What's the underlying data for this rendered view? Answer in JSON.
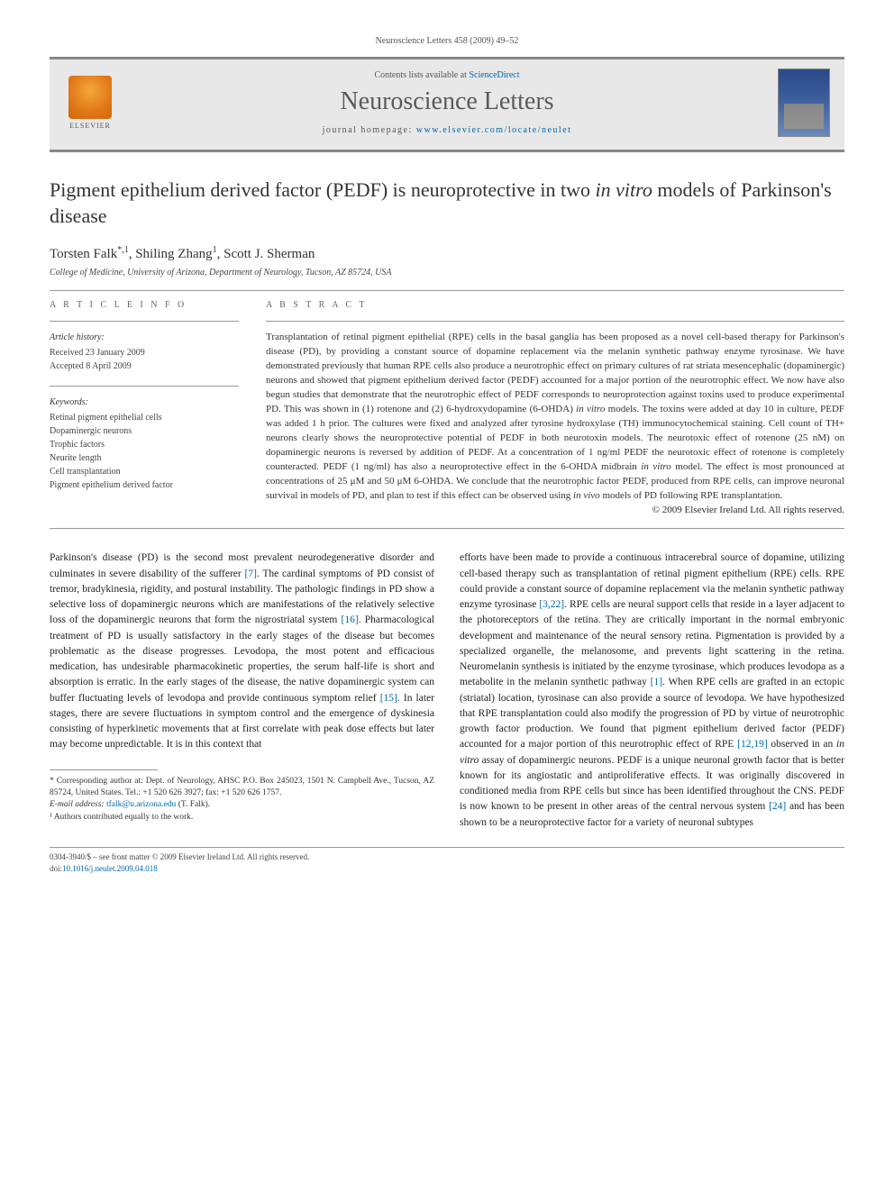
{
  "running_header": "Neuroscience Letters 458 (2009) 49–52",
  "banner": {
    "publisher": "ELSEVIER",
    "contents_prefix": "Contents lists available at ",
    "contents_link": "ScienceDirect",
    "journal_name": "Neuroscience Letters",
    "homepage_prefix": "journal homepage: ",
    "homepage_url": "www.elsevier.com/locate/neulet"
  },
  "title_html": "Pigment epithelium derived factor (PEDF) is neuroprotective in two <em>in vitro</em> models of Parkinson's disease",
  "authors_html": "Torsten Falk<sup>*,1</sup>, Shiling Zhang<sup>1</sup>, Scott J. Sherman",
  "affiliation": "College of Medicine, University of Arizona, Department of Neurology, Tucson, AZ 85724, USA",
  "meta": {
    "info_heading": "A R T I C L E   I N F O",
    "history_label": "Article history:",
    "history_received": "Received 23 January 2009",
    "history_accepted": "Accepted 8 April 2009",
    "keywords_label": "Keywords:",
    "keywords": [
      "Retinal pigment epithelial cells",
      "Dopaminergic neurons",
      "Trophic factors",
      "Neurite length",
      "Cell transplantation",
      "Pigment epithelium derived factor"
    ]
  },
  "abstract": {
    "heading": "A B S T R A C T",
    "text_html": "Transplantation of retinal pigment epithelial (RPE) cells in the basal ganglia has been proposed as a novel cell-based therapy for Parkinson's disease (PD), by providing a constant source of dopamine replacement via the melanin synthetic pathway enzyme tyrosinase. We have demonstrated previously that human RPE cells also produce a neurotrophic effect on primary cultures of rat striata mesencephalic (dopaminergic) neurons and showed that pigment epithelium derived factor (PEDF) accounted for a major portion of the neurotrophic effect. We now have also begun studies that demonstrate that the neurotrophic effect of PEDF corresponds to neuroprotection against toxins used to produce experimental PD. This was shown in (1) rotenone and (2) 6-hydroxydopamine (6-OHDA) <em>in vitro</em> models. The toxins were added at day 10 in culture, PEDF was added 1 h prior. The cultures were fixed and analyzed after tyrosine hydroxylase (TH) immunocytochemical staining. Cell count of TH+ neurons clearly shows the neuroprotective potential of PEDF in both neurotoxin models. The neurotoxic effect of rotenone (25 nM) on dopaminergic neurons is reversed by addition of PEDF. At a concentration of 1 ng/ml PEDF the neurotoxic effect of rotenone is completely counteracted. PEDF (1 ng/ml) has also a neuroprotective effect in the 6-OHDA midbrain <em>in vitro</em> model. The effect is most pronounced at concentrations of 25 μM and 50 μM 6-OHDA. We conclude that the neurotrophic factor PEDF, produced from RPE cells, can improve neuronal survival in models of PD, and plan to test if this effect can be observed using <em>in vivo</em> models of PD following RPE transplantation.",
    "copyright": "© 2009 Elsevier Ireland Ltd. All rights reserved."
  },
  "body": {
    "left_html": "Parkinson's disease (PD) is the second most prevalent neurodegenerative disorder and culminates in severe disability of the sufferer <a href='#'>[7]</a>. The cardinal symptoms of PD consist of tremor, bradykinesia, rigidity, and postural instability. The pathologic findings in PD show a selective loss of dopaminergic neurons which are manifestations of the relatively selective loss of the dopaminergic neurons that form the nigrostriatal system <a href='#'>[16]</a>. Pharmacological treatment of PD is usually satisfactory in the early stages of the disease but becomes problematic as the disease progresses. Levodopa, the most potent and efficacious medication, has undesirable pharmacokinetic properties, the serum half-life is short and absorption is erratic. In the early stages of the disease, the native dopaminergic system can buffer fluctuating levels of levodopa and provide continuous symptom relief <a href='#'>[15]</a>. In later stages, there are severe fluctuations in symptom control and the emergence of dyskinesia consisting of hyperkinetic movements that at first correlate with peak dose effects but later may become unpredictable. It is in this context that",
    "right_html": "efforts have been made to provide a continuous intracerebral source of dopamine, utilizing cell-based therapy such as transplantation of retinal pigment epithelium (RPE) cells. RPE could provide a constant source of dopamine replacement via the melanin synthetic pathway enzyme tyrosinase <a href='#'>[3,22]</a>. RPE cells are neural support cells that reside in a layer adjacent to the photoreceptors of the retina. They are critically important in the normal embryonic development and maintenance of the neural sensory retina. Pigmentation is provided by a specialized organelle, the melanosome, and prevents light scattering in the retina. Neuromelanin synthesis is initiated by the enzyme tyrosinase, which produces levodopa as a metabolite in the melanin synthetic pathway <a href='#'>[1]</a>. When RPE cells are grafted in an ectopic (striatal) location, tyrosinase can also provide a source of levodopa. We have hypothesized that RPE transplantation could also modify the progression of PD by virtue of neurotrophic growth factor production. We found that pigment epithelium derived factor (PEDF) accounted for a major portion of this neurotrophic effect of RPE <a href='#'>[12,19]</a> observed in an <em>in vitro</em> assay of dopaminergic neurons. PEDF is a unique neuronal growth factor that is better known for its angiostatic and antiproliferative effects. It was originally discovered in conditioned media from RPE cells but since has been identified throughout the CNS. PEDF is now known to be present in other areas of the central nervous system <a href='#'>[24]</a> and has been shown to be a neuroprotective factor for a variety of neuronal subtypes"
  },
  "footnotes": {
    "corr_html": "* Corresponding author at: Dept. of Neurology, AHSC P.O. Box 245023, 1501 N. Campbell Ave., Tucson, AZ 85724, United States. Tel.: +1 520 626 3927; fax: +1 520 626 1757.",
    "email_label": "E-mail address: ",
    "email": "tfalk@u.arizona.edu",
    "email_name": " (T. Falk).",
    "equal": "¹ Authors contributed equally to the work."
  },
  "footer": {
    "line1": "0304-3940/$ – see front matter © 2009 Elsevier Ireland Ltd. All rights reserved.",
    "doi_label": "doi:",
    "doi": "10.1016/j.neulet.2009.04.018"
  },
  "colors": {
    "link": "#0066aa",
    "bar": "#888888",
    "banner_bg": "#e8e8e8",
    "text": "#2a2a2a"
  },
  "typography": {
    "body_pt": 11.5,
    "title_pt": 22,
    "journal_name_pt": 28,
    "meta_pt": 10,
    "abstract_pt": 11,
    "footnote_pt": 9.5
  }
}
